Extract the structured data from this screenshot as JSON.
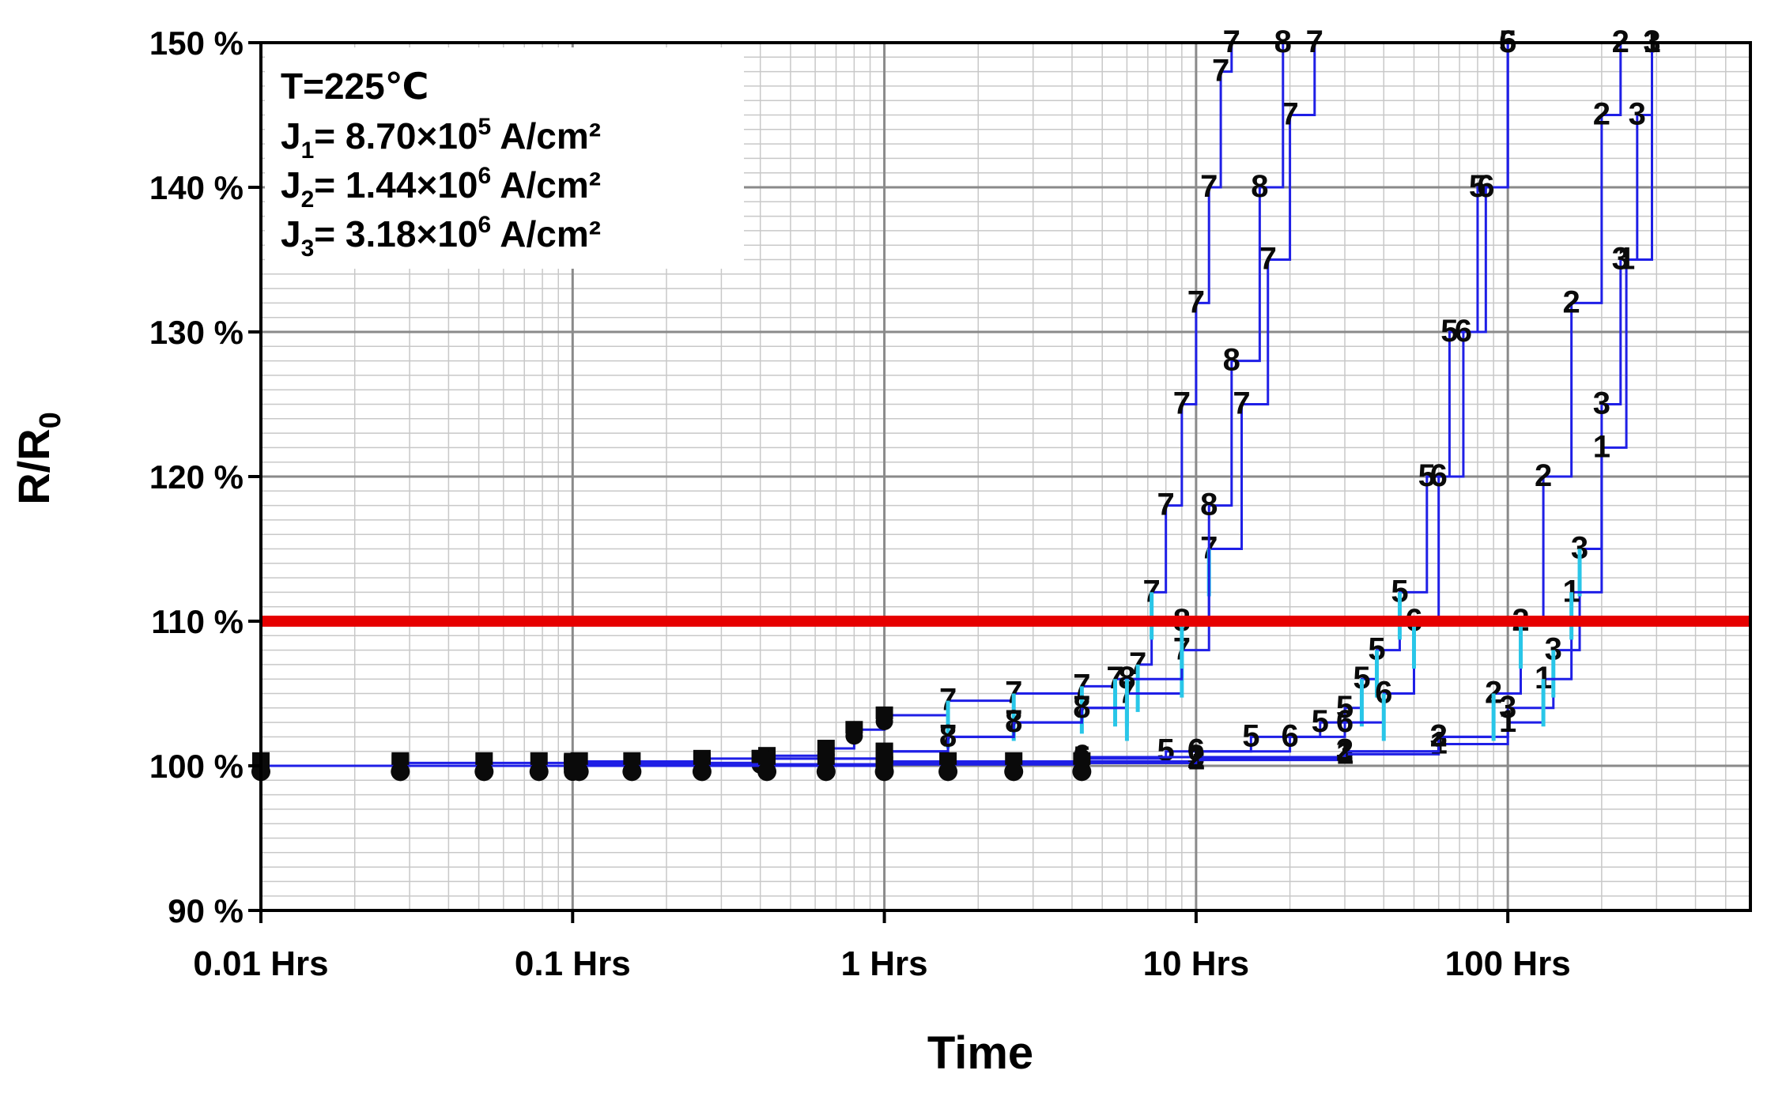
{
  "chart_data": {
    "type": "line",
    "xlabel": "Time",
    "ylabel": "R/R0",
    "ylabel_main": "R/R",
    "ylabel_sub": "0",
    "x_scale": "log",
    "xlim_hrs": [
      0.01,
      600
    ],
    "ylim_percent": [
      90,
      150
    ],
    "x_ticks": [
      {
        "value": 0.01,
        "label": "0.01 Hrs"
      },
      {
        "value": 0.1,
        "label": "0.1 Hrs"
      },
      {
        "value": 1,
        "label": "1 Hrs"
      },
      {
        "value": 10,
        "label": "10 Hrs"
      },
      {
        "value": 100,
        "label": "100 Hrs"
      }
    ],
    "y_ticks": [
      {
        "value": 90,
        "label": "90 %"
      },
      {
        "value": 100,
        "label": "100 %"
      },
      {
        "value": 110,
        "label": "110 %"
      },
      {
        "value": 120,
        "label": "120 %"
      },
      {
        "value": 130,
        "label": "130 %"
      },
      {
        "value": 140,
        "label": "140 %"
      },
      {
        "value": 150,
        "label": "150 %"
      }
    ],
    "grid": true,
    "threshold": {
      "value": 110,
      "color": "#e60000"
    },
    "series_color": "#1f1fe6",
    "marker_color": "#0a0a0a",
    "accent_color": "#29c6e8",
    "early_times_hrs": [
      0.01,
      0.028,
      0.052,
      0.078,
      0.105,
      0.155,
      0.26,
      0.42,
      0.65,
      1.0,
      1.6,
      2.6,
      4.3
    ],
    "series": [
      {
        "label": "7",
        "values_percent": [
          100,
          100.2,
          100.3,
          100.5,
          100.7,
          101.2,
          102.5,
          103.5,
          104.5,
          105,
          105.5,
          106,
          107,
          112,
          118,
          125,
          132,
          140,
          148,
          150
        ],
        "times_hrs": [
          0.01,
          0.028,
          0.1,
          0.26,
          0.42,
          0.65,
          0.8,
          1.0,
          1.6,
          2.6,
          4.3,
          5.5,
          6.5,
          7.2,
          8.0,
          9.0,
          10.0,
          11.0,
          12.0,
          13.0
        ]
      },
      {
        "label": "7",
        "values_percent": [
          100,
          100.2,
          100.5,
          101,
          102,
          103,
          104,
          105,
          108,
          115,
          125,
          135,
          145,
          150
        ],
        "times_hrs": [
          0.01,
          0.1,
          0.4,
          1.0,
          1.6,
          2.6,
          4.3,
          6.0,
          9.0,
          11.0,
          14.0,
          17.0,
          20.0,
          24.0
        ]
      },
      {
        "label": "8",
        "values_percent": [
          100,
          100.2,
          100.5,
          101,
          102,
          103,
          104,
          106,
          110,
          118,
          128,
          140,
          150
        ],
        "times_hrs": [
          0.01,
          0.1,
          0.4,
          1.0,
          1.6,
          2.6,
          4.3,
          6.0,
          9.0,
          11.0,
          13.0,
          16.0,
          19.0
        ]
      },
      {
        "label": "5",
        "values_percent": [
          100,
          100.1,
          100.2,
          100.5,
          101,
          102,
          103,
          104,
          106,
          108,
          112,
          120,
          130,
          140,
          150
        ],
        "times_hrs": [
          0.01,
          0.1,
          1.0,
          4.3,
          8.0,
          15.0,
          25.0,
          30.0,
          34.0,
          38.0,
          45.0,
          55.0,
          65.0,
          80.0,
          100.0
        ]
      },
      {
        "label": "6",
        "values_percent": [
          100,
          100.1,
          100.3,
          100.6,
          101,
          102,
          103,
          105,
          110,
          120,
          130,
          140,
          150
        ],
        "times_hrs": [
          0.01,
          0.1,
          1.0,
          4.3,
          10.0,
          20.0,
          30.0,
          40.0,
          50.0,
          60.0,
          72.0,
          85.0,
          100.0
        ]
      },
      {
        "label": "3",
        "values_percent": [
          100,
          100,
          100.1,
          100.3,
          100.6,
          101,
          102,
          104,
          108,
          115,
          125,
          135,
          145,
          150
        ],
        "times_hrs": [
          0.01,
          0.1,
          1.0,
          4.3,
          10.0,
          30.0,
          60.0,
          100.0,
          140.0,
          170.0,
          200.0,
          230.0,
          260.0,
          290.0
        ]
      },
      {
        "label": "1",
        "values_percent": [
          100,
          100,
          100.1,
          100.2,
          100.4,
          100.8,
          101.5,
          103,
          106,
          112,
          122,
          135,
          150
        ],
        "times_hrs": [
          0.01,
          0.1,
          1.0,
          4.3,
          10.0,
          30.0,
          60.0,
          100.0,
          130.0,
          160.0,
          200.0,
          240.0,
          290.0
        ]
      },
      {
        "label": "2",
        "values_percent": [
          100,
          100,
          100.1,
          100.2,
          100.5,
          101,
          102,
          105,
          110,
          120,
          132,
          145,
          150
        ],
        "times_hrs": [
          0.01,
          0.1,
          1.0,
          4.3,
          10.0,
          30.0,
          60.0,
          90.0,
          110.0,
          130.0,
          160.0,
          200.0,
          230.0
        ]
      }
    ],
    "annotation": {
      "lines": [
        {
          "prefix": "T=225℃",
          "sub": "",
          "value": "",
          "sup": "",
          "unit": ""
        },
        {
          "prefix": "J",
          "sub": "1",
          "value": "= 8.70×10",
          "sup": "5",
          "unit": " A/cm²"
        },
        {
          "prefix": "J",
          "sub": "2",
          "value": "= 1.44×10",
          "sup": "6",
          "unit": " A/cm²"
        },
        {
          "prefix": "J",
          "sub": "3",
          "value": "= 3.18×10",
          "sup": "6",
          "unit": " A/cm²"
        }
      ]
    }
  }
}
